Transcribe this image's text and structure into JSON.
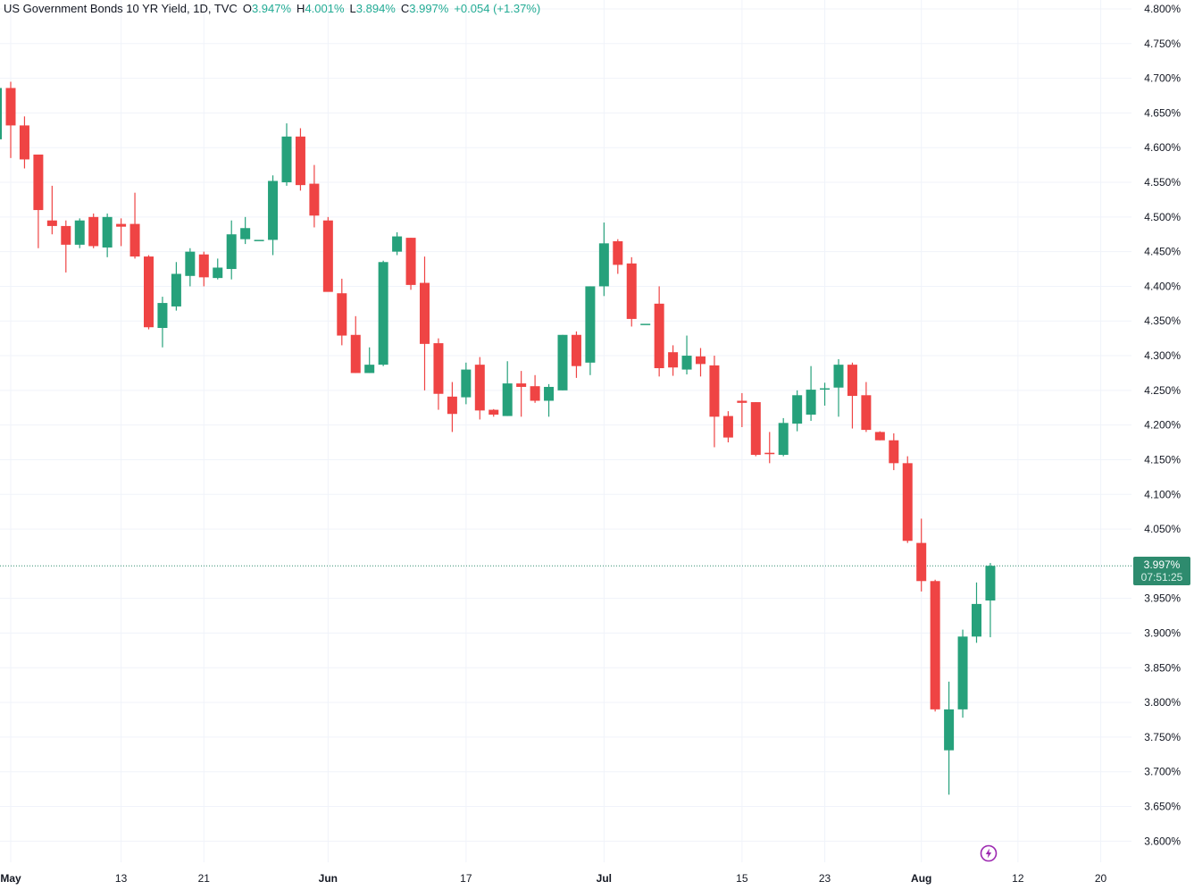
{
  "legend": {
    "title": "US Government Bonds 10 YR Yield, 1D, TVC",
    "o_label": "O",
    "o_value": "3.947%",
    "h_label": "H",
    "h_value": "4.001%",
    "l_label": "L",
    "l_value": "3.894%",
    "c_label": "C",
    "c_value": "3.997%",
    "change": "+0.054 (+1.37%)"
  },
  "price_tag": {
    "price": "3.997%",
    "countdown": "07:51:25"
  },
  "colors": {
    "up": "#26a17b",
    "down": "#ef4444",
    "grid": "#f0f3fa",
    "text": "#131722",
    "last_line": "#2e8b6e"
  },
  "icons": {
    "bolt": "lightning-icon"
  },
  "chart_data": {
    "type": "candlestick",
    "ylim": [
      3.575,
      4.8
    ],
    "y_ticks": [
      "4.800%",
      "4.750%",
      "4.700%",
      "4.650%",
      "4.600%",
      "4.550%",
      "4.500%",
      "4.450%",
      "4.400%",
      "4.350%",
      "4.300%",
      "4.250%",
      "4.200%",
      "4.150%",
      "4.100%",
      "4.050%",
      "3.950%",
      "3.900%",
      "3.850%",
      "3.800%",
      "3.750%",
      "3.700%",
      "3.650%",
      "3.600%"
    ],
    "x_ticks": [
      {
        "label": "May",
        "date": "2024-05-01"
      },
      {
        "label": "13",
        "date": "2024-05-13"
      },
      {
        "label": "21",
        "date": "2024-05-21"
      },
      {
        "label": "Jun",
        "date": "2024-06-03"
      },
      {
        "label": "17",
        "date": "2024-06-17"
      },
      {
        "label": "Jul",
        "date": "2024-07-01"
      },
      {
        "label": "15",
        "date": "2024-07-15"
      },
      {
        "label": "23",
        "date": "2024-07-23"
      },
      {
        "label": "Aug",
        "date": "2024-08-01"
      },
      {
        "label": "12",
        "date": "2024-08-12"
      },
      {
        "label": "20",
        "date": "2024-08-20"
      }
    ],
    "last_price": 3.997,
    "candles": [
      {
        "date": "2024-04-30",
        "o": 4.612,
        "h": 4.695,
        "l": 4.605,
        "c": 4.686
      },
      {
        "date": "2024-05-01",
        "o": 4.686,
        "h": 4.695,
        "l": 4.585,
        "c": 4.632
      },
      {
        "date": "2024-05-02",
        "o": 4.632,
        "h": 4.645,
        "l": 4.57,
        "c": 4.583
      },
      {
        "date": "2024-05-03",
        "o": 4.59,
        "h": 4.59,
        "l": 4.455,
        "c": 4.51
      },
      {
        "date": "2024-05-06",
        "o": 4.495,
        "h": 4.545,
        "l": 4.475,
        "c": 4.487
      },
      {
        "date": "2024-05-07",
        "o": 4.487,
        "h": 4.495,
        "l": 4.42,
        "c": 4.46
      },
      {
        "date": "2024-05-08",
        "o": 4.46,
        "h": 4.498,
        "l": 4.455,
        "c": 4.495
      },
      {
        "date": "2024-05-09",
        "o": 4.5,
        "h": 4.505,
        "l": 4.455,
        "c": 4.458
      },
      {
        "date": "2024-05-10",
        "o": 4.456,
        "h": 4.505,
        "l": 4.442,
        "c": 4.5
      },
      {
        "date": "2024-05-13",
        "o": 4.49,
        "h": 4.498,
        "l": 4.458,
        "c": 4.486
      },
      {
        "date": "2024-05-14",
        "o": 4.49,
        "h": 4.535,
        "l": 4.44,
        "c": 4.443
      },
      {
        "date": "2024-05-15",
        "o": 4.443,
        "h": 4.445,
        "l": 4.338,
        "c": 4.341
      },
      {
        "date": "2024-05-16",
        "o": 4.34,
        "h": 4.385,
        "l": 4.312,
        "c": 4.376
      },
      {
        "date": "2024-05-17",
        "o": 4.371,
        "h": 4.435,
        "l": 4.365,
        "c": 4.418
      },
      {
        "date": "2024-05-20",
        "o": 4.415,
        "h": 4.455,
        "l": 4.4,
        "c": 4.45
      },
      {
        "date": "2024-05-21",
        "o": 4.446,
        "h": 4.45,
        "l": 4.4,
        "c": 4.413
      },
      {
        "date": "2024-05-22",
        "o": 4.412,
        "h": 4.44,
        "l": 4.41,
        "c": 4.427
      },
      {
        "date": "2024-05-23",
        "o": 4.425,
        "h": 4.495,
        "l": 4.41,
        "c": 4.475
      },
      {
        "date": "2024-05-24",
        "o": 4.468,
        "h": 4.5,
        "l": 4.461,
        "c": 4.484
      },
      {
        "date": "2024-05-27",
        "o": 4.467,
        "h": 4.467,
        "l": 4.467,
        "c": 4.467
      },
      {
        "date": "2024-05-28",
        "o": 4.467,
        "h": 4.56,
        "l": 4.445,
        "c": 4.552
      },
      {
        "date": "2024-05-29",
        "o": 4.55,
        "h": 4.635,
        "l": 4.545,
        "c": 4.616
      },
      {
        "date": "2024-05-30",
        "o": 4.616,
        "h": 4.628,
        "l": 4.538,
        "c": 4.546
      },
      {
        "date": "2024-05-31",
        "o": 4.548,
        "h": 4.575,
        "l": 4.485,
        "c": 4.502
      },
      {
        "date": "2024-06-03",
        "o": 4.495,
        "h": 4.5,
        "l": 4.393,
        "c": 4.392
      },
      {
        "date": "2024-06-04",
        "o": 4.39,
        "h": 4.411,
        "l": 4.315,
        "c": 4.329
      },
      {
        "date": "2024-06-05",
        "o": 4.33,
        "h": 4.357,
        "l": 4.275,
        "c": 4.275
      },
      {
        "date": "2024-06-06",
        "o": 4.275,
        "h": 4.312,
        "l": 4.275,
        "c": 4.287
      },
      {
        "date": "2024-06-07",
        "o": 4.287,
        "h": 4.437,
        "l": 4.285,
        "c": 4.435
      },
      {
        "date": "2024-06-10",
        "o": 4.45,
        "h": 4.478,
        "l": 4.445,
        "c": 4.472
      },
      {
        "date": "2024-06-11",
        "o": 4.47,
        "h": 4.47,
        "l": 4.395,
        "c": 4.402
      },
      {
        "date": "2024-06-12",
        "o": 4.405,
        "h": 4.443,
        "l": 4.25,
        "c": 4.317
      },
      {
        "date": "2024-06-13",
        "o": 4.318,
        "h": 4.325,
        "l": 4.222,
        "c": 4.245
      },
      {
        "date": "2024-06-14",
        "o": 4.241,
        "h": 4.262,
        "l": 4.19,
        "c": 4.216
      },
      {
        "date": "2024-06-17",
        "o": 4.24,
        "h": 4.29,
        "l": 4.23,
        "c": 4.28
      },
      {
        "date": "2024-06-18",
        "o": 4.287,
        "h": 4.298,
        "l": 4.208,
        "c": 4.221
      },
      {
        "date": "2024-06-19",
        "o": 4.222,
        "h": 4.223,
        "l": 4.212,
        "c": 4.215
      },
      {
        "date": "2024-06-20",
        "o": 4.213,
        "h": 4.292,
        "l": 4.213,
        "c": 4.26
      },
      {
        "date": "2024-06-21",
        "o": 4.26,
        "h": 4.278,
        "l": 4.212,
        "c": 4.255
      },
      {
        "date": "2024-06-24",
        "o": 4.256,
        "h": 4.272,
        "l": 4.232,
        "c": 4.235
      },
      {
        "date": "2024-06-25",
        "o": 4.235,
        "h": 4.259,
        "l": 4.212,
        "c": 4.255
      },
      {
        "date": "2024-06-26",
        "o": 4.25,
        "h": 4.33,
        "l": 4.25,
        "c": 4.33
      },
      {
        "date": "2024-06-27",
        "o": 4.33,
        "h": 4.335,
        "l": 4.268,
        "c": 4.285
      },
      {
        "date": "2024-06-28",
        "o": 4.29,
        "h": 4.4,
        "l": 4.272,
        "c": 4.4
      },
      {
        "date": "2024-07-01",
        "o": 4.4,
        "h": 4.492,
        "l": 4.386,
        "c": 4.462
      },
      {
        "date": "2024-07-02",
        "o": 4.465,
        "h": 4.468,
        "l": 4.418,
        "c": 4.431
      },
      {
        "date": "2024-07-03",
        "o": 4.433,
        "h": 4.442,
        "l": 4.342,
        "c": 4.353
      },
      {
        "date": "2024-07-04",
        "o": 4.346,
        "h": 4.346,
        "l": 4.346,
        "c": 4.346
      },
      {
        "date": "2024-07-05",
        "o": 4.375,
        "h": 4.4,
        "l": 4.27,
        "c": 4.282
      },
      {
        "date": "2024-07-08",
        "o": 4.305,
        "h": 4.315,
        "l": 4.271,
        "c": 4.283
      },
      {
        "date": "2024-07-09",
        "o": 4.28,
        "h": 4.329,
        "l": 4.273,
        "c": 4.3
      },
      {
        "date": "2024-07-10",
        "o": 4.299,
        "h": 4.311,
        "l": 4.27,
        "c": 4.288
      },
      {
        "date": "2024-07-11",
        "o": 4.286,
        "h": 4.3,
        "l": 4.168,
        "c": 4.212
      },
      {
        "date": "2024-07-12",
        "o": 4.213,
        "h": 4.22,
        "l": 4.175,
        "c": 4.182
      },
      {
        "date": "2024-07-15",
        "o": 4.235,
        "h": 4.246,
        "l": 4.197,
        "c": 4.232
      },
      {
        "date": "2024-07-16",
        "o": 4.233,
        "h": 4.233,
        "l": 4.155,
        "c": 4.157
      },
      {
        "date": "2024-07-17",
        "o": 4.16,
        "h": 4.19,
        "l": 4.145,
        "c": 4.158
      },
      {
        "date": "2024-07-18",
        "o": 4.157,
        "h": 4.21,
        "l": 4.155,
        "c": 4.203
      },
      {
        "date": "2024-07-19",
        "o": 4.202,
        "h": 4.25,
        "l": 4.191,
        "c": 4.243
      },
      {
        "date": "2024-07-22",
        "o": 4.215,
        "h": 4.285,
        "l": 4.206,
        "c": 4.251
      },
      {
        "date": "2024-07-23",
        "o": 4.253,
        "h": 4.261,
        "l": 4.228,
        "c": 4.253
      },
      {
        "date": "2024-07-24",
        "o": 4.254,
        "h": 4.295,
        "l": 4.212,
        "c": 4.287
      },
      {
        "date": "2024-07-25",
        "o": 4.287,
        "h": 4.29,
        "l": 4.195,
        "c": 4.242
      },
      {
        "date": "2024-07-26",
        "o": 4.243,
        "h": 4.262,
        "l": 4.19,
        "c": 4.193
      },
      {
        "date": "2024-07-29",
        "o": 4.19,
        "h": 4.191,
        "l": 4.178,
        "c": 4.178
      },
      {
        "date": "2024-07-30",
        "o": 4.178,
        "h": 4.188,
        "l": 4.135,
        "c": 4.145
      },
      {
        "date": "2024-07-31",
        "o": 4.145,
        "h": 4.155,
        "l": 4.03,
        "c": 4.033
      },
      {
        "date": "2024-08-01",
        "o": 4.03,
        "h": 4.065,
        "l": 3.96,
        "c": 3.975
      },
      {
        "date": "2024-08-02",
        "o": 3.975,
        "h": 3.977,
        "l": 3.787,
        "c": 3.79
      },
      {
        "date": "2024-08-05",
        "o": 3.731,
        "h": 3.83,
        "l": 3.667,
        "c": 3.79
      },
      {
        "date": "2024-08-06",
        "o": 3.79,
        "h": 3.905,
        "l": 3.778,
        "c": 3.895
      },
      {
        "date": "2024-08-07",
        "o": 3.895,
        "h": 3.973,
        "l": 3.886,
        "c": 3.942
      },
      {
        "date": "2024-08-08",
        "o": 3.947,
        "h": 4.001,
        "l": 3.894,
        "c": 3.997
      }
    ]
  }
}
